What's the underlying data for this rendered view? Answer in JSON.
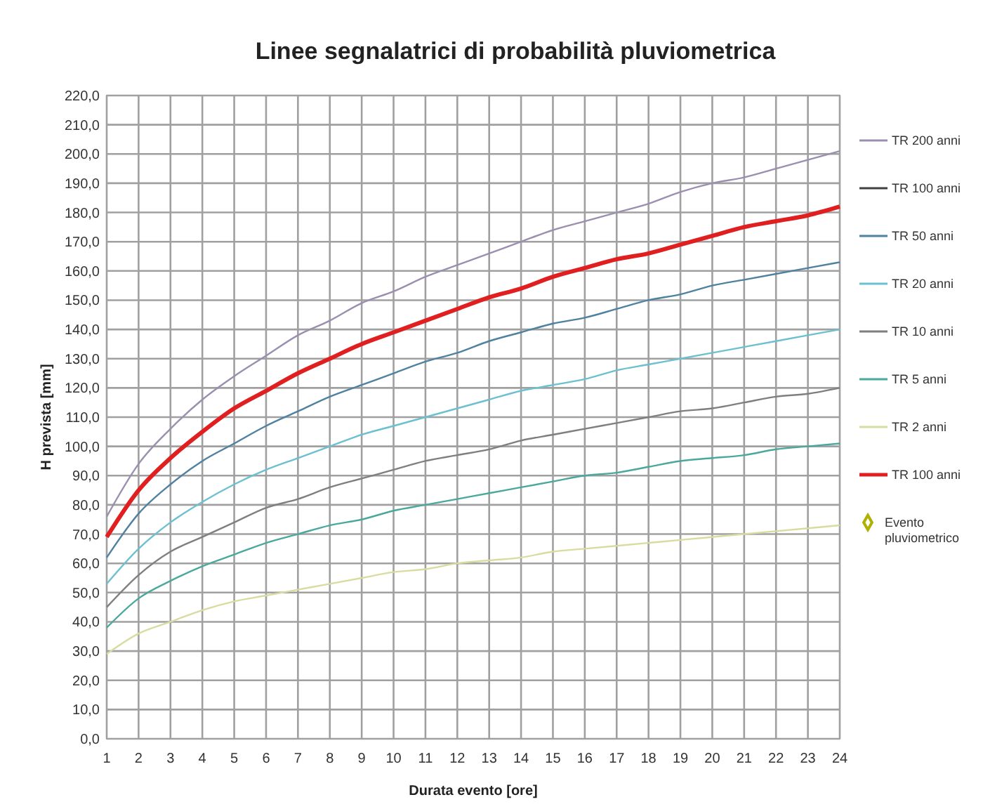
{
  "chart_data": {
    "type": "line",
    "title": "Linee segnalatrici di probabilità pluviometrica",
    "xlabel": "Durata evento [ore]",
    "ylabel": "H prevista [mm]",
    "x": [
      1,
      2,
      3,
      4,
      5,
      6,
      7,
      8,
      9,
      10,
      11,
      12,
      13,
      14,
      15,
      16,
      17,
      18,
      19,
      20,
      21,
      22,
      23,
      24
    ],
    "xlim": [
      1,
      24
    ],
    "xticks": [
      1,
      2,
      3,
      4,
      5,
      6,
      7,
      8,
      9,
      10,
      11,
      12,
      13,
      14,
      15,
      16,
      17,
      18,
      19,
      20,
      21,
      22,
      23,
      24
    ],
    "ylim": [
      0,
      220
    ],
    "yticks": [
      {
        "value": 0,
        "label": "0,0"
      },
      {
        "value": 10,
        "label": "10,0"
      },
      {
        "value": 20,
        "label": "20,0"
      },
      {
        "value": 30,
        "label": "30,0"
      },
      {
        "value": 40,
        "label": "40,0"
      },
      {
        "value": 50,
        "label": "50,0"
      },
      {
        "value": 60,
        "label": "60,0"
      },
      {
        "value": 70,
        "label": "70,0"
      },
      {
        "value": 80,
        "label": "80,0"
      },
      {
        "value": 90,
        "label": "90,0"
      },
      {
        "value": 100,
        "label": "100,0"
      },
      {
        "value": 110,
        "label": "110,0"
      },
      {
        "value": 120,
        "label": "120,0"
      },
      {
        "value": 130,
        "label": "130,0"
      },
      {
        "value": 140,
        "label": "140,0"
      },
      {
        "value": 150,
        "label": "150,0"
      },
      {
        "value": 160,
        "label": "160,0"
      },
      {
        "value": 170,
        "label": "170,0"
      },
      {
        "value": 180,
        "label": "180,0"
      },
      {
        "value": 190,
        "label": "190,0"
      },
      {
        "value": 200,
        "label": "200,0"
      },
      {
        "value": 210,
        "label": "210,0"
      },
      {
        "value": 220,
        "label": "220,0"
      }
    ],
    "grid": true,
    "legend": "right",
    "marker": "none",
    "line_style": "solid",
    "series": [
      {
        "name": "TR 200 anni",
        "color": "#9b8fb0",
        "values": [
          76,
          94,
          106,
          116,
          124,
          131,
          138,
          143,
          149,
          153,
          158,
          162,
          166,
          170,
          174,
          177,
          180,
          183,
          187,
          190,
          192,
          195,
          198,
          201
        ]
      },
      {
        "name": "TR 100 anni",
        "color": "#404040",
        "values": [
          null,
          null,
          null,
          null,
          null,
          null,
          null,
          null,
          null,
          null,
          null,
          null,
          null,
          null,
          null,
          null,
          null,
          null,
          null,
          null,
          null,
          null,
          null,
          null
        ]
      },
      {
        "name": "TR 50 anni",
        "color": "#4f81a0",
        "values": [
          62,
          77,
          87,
          95,
          101,
          107,
          112,
          117,
          121,
          125,
          129,
          132,
          136,
          139,
          142,
          144,
          147,
          150,
          152,
          155,
          157,
          159,
          161,
          163
        ]
      },
      {
        "name": "TR 20 anni",
        "color": "#6cc0d0",
        "values": [
          53,
          65,
          74,
          81,
          87,
          92,
          96,
          100,
          104,
          107,
          110,
          113,
          116,
          119,
          121,
          123,
          126,
          128,
          130,
          132,
          134,
          136,
          138,
          140
        ]
      },
      {
        "name": "TR 10 anni",
        "color": "#7f7f7f",
        "values": [
          45,
          56,
          64,
          69,
          74,
          79,
          82,
          86,
          89,
          92,
          95,
          97,
          99,
          102,
          104,
          106,
          108,
          110,
          112,
          113,
          115,
          117,
          118,
          120
        ]
      },
      {
        "name": "TR 5 anni",
        "color": "#4aa89c",
        "values": [
          38,
          48,
          54,
          59,
          63,
          67,
          70,
          73,
          75,
          78,
          80,
          82,
          84,
          86,
          88,
          90,
          91,
          93,
          95,
          96,
          97,
          99,
          100,
          101
        ]
      },
      {
        "name": "TR 2 anni",
        "color": "#d8dca0",
        "values": [
          29,
          36,
          40,
          44,
          47,
          49,
          51,
          53,
          55,
          57,
          58,
          60,
          61,
          62,
          64,
          65,
          66,
          67,
          68,
          69,
          70,
          71,
          72,
          73
        ]
      },
      {
        "name": "TR 100 anni",
        "color": "#e02020",
        "values": [
          69,
          85,
          96,
          105,
          113,
          119,
          125,
          130,
          135,
          139,
          143,
          147,
          151,
          154,
          158,
          161,
          164,
          166,
          169,
          172,
          175,
          177,
          179,
          182
        ]
      },
      {
        "name": "Evento pluviometrico",
        "type": "scatter",
        "marker": "diamond",
        "color": "#b0b000",
        "values": [
          null,
          null,
          null,
          null,
          null,
          null,
          null,
          null,
          null,
          null,
          null,
          null,
          null,
          null,
          null,
          null,
          null,
          null,
          null,
          null,
          null,
          null,
          null,
          null
        ]
      }
    ]
  }
}
